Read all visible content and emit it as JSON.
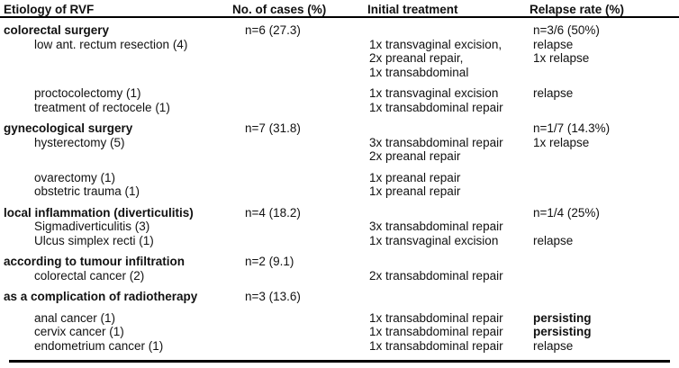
{
  "colors": {
    "text": "#111111",
    "rule": "#000000"
  },
  "table": {
    "header": [
      "Etiology of RVF",
      "No. of cases (%)",
      "Initial treatment",
      "Relapse rate (%)"
    ],
    "sections": [
      {
        "etiology": "colorectal surgery",
        "cases": "n=6 (27.3)",
        "relapse_rate": "n=3/6 (50%)",
        "items": [
          {
            "name": "low ant. rectum resection (4)",
            "treatments": [
              "1x transvaginal excision,",
              "2x preanal repair,",
              "1x transabdominal"
            ],
            "relapses": [
              "relapse",
              "1x relapse",
              ""
            ]
          },
          {
            "name": "proctocolectomy (1)",
            "spacer_before": true,
            "treatments": [
              "1x transvaginal excision"
            ],
            "relapses": [
              "relapse"
            ]
          },
          {
            "name": "treatment of rectocele (1)",
            "treatments": [
              "1x transabdominal repair"
            ],
            "relapses": [
              ""
            ]
          }
        ]
      },
      {
        "etiology": "gynecological surgery",
        "cases": "n=7 (31.8)",
        "relapse_rate": "n=1/7 (14.3%)",
        "items": [
          {
            "name": "hysterectomy (5)",
            "treatments": [
              "3x transabdominal repair",
              "2x preanal repair"
            ],
            "relapses": [
              "1x relapse",
              ""
            ]
          },
          {
            "name": "ovarectomy (1)",
            "spacer_before": true,
            "treatments": [
              "1x preanal repair"
            ],
            "relapses": [
              ""
            ]
          },
          {
            "name": "obstetric trauma (1)",
            "treatments": [
              "1x preanal repair"
            ],
            "relapses": [
              ""
            ]
          }
        ]
      },
      {
        "etiology": "local inflammation (diverticulitis)",
        "cases": "n=4 (18.2)",
        "relapse_rate": "n=1/4 (25%)",
        "items": [
          {
            "name": "Sigmadiverticulitis (3)",
            "treatments": [
              "3x transabdominal repair"
            ],
            "relapses": [
              ""
            ]
          },
          {
            "name": "Ulcus simplex recti (1)",
            "treatments": [
              "1x transvaginal excision"
            ],
            "relapses": [
              "relapse"
            ]
          }
        ]
      },
      {
        "etiology": "according to tumour infiltration",
        "cases": "n=2 (9.1)",
        "relapse_rate": "",
        "items": [
          {
            "name": "colorectal cancer (2)",
            "treatments": [
              "2x transabdominal repair"
            ],
            "relapses": [
              ""
            ]
          }
        ]
      },
      {
        "etiology": "as a complication of radiotherapy",
        "cases": "n=3 (13.6)",
        "relapse_rate": "",
        "items": [
          {
            "name": "anal cancer (1)",
            "spacer_before": true,
            "treatments": [
              "1x transabdominal repair"
            ],
            "relapses": [
              "persisting"
            ],
            "relapse_bold": true
          },
          {
            "name": "cervix cancer (1)",
            "treatments": [
              "1x transabdominal repair"
            ],
            "relapses": [
              "persisting"
            ],
            "relapse_bold": true
          },
          {
            "name": "endometrium cancer (1)",
            "treatments": [
              "1x transabdominal repair"
            ],
            "relapses": [
              "relapse"
            ]
          }
        ]
      }
    ]
  }
}
